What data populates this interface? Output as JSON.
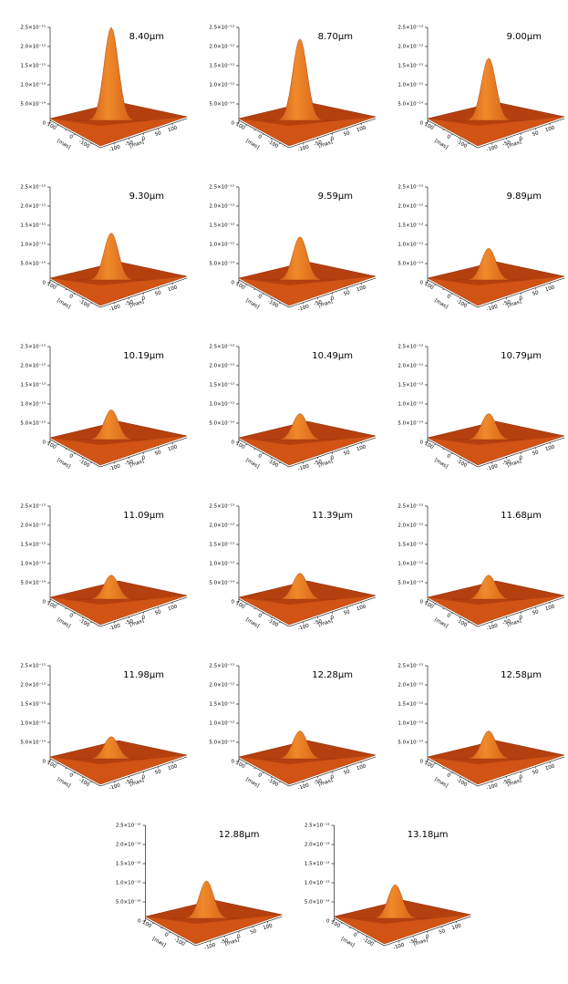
{
  "chart_data": [
    {
      "type": "surface",
      "title": "8.40μm",
      "peak": 2.5e-13,
      "color": "#e8651c",
      "zlim": [
        0,
        2.5e-13
      ],
      "zticks": [
        0,
        {
          "value": 5e-14,
          "label": "5.0×10⁻¹⁴"
        },
        {
          "value": 1e-13,
          "label": "1.0×10⁻¹³"
        },
        {
          "value": 1.5e-13,
          "label": "1.5×10⁻¹³"
        },
        {
          "value": 2e-13,
          "label": "2.0×10⁻¹³"
        },
        {
          "value": 2.5e-13,
          "label": "2.5×10⁻¹³"
        }
      ],
      "xlabel": "[mas]",
      "ylabel": "[mas]",
      "xlim": [
        -150,
        150
      ],
      "ylim": [
        -150,
        150
      ],
      "xticks": [
        -100,
        -50,
        0,
        50,
        100
      ],
      "yticks": [
        -100,
        -50,
        0,
        50,
        100
      ]
    },
    {
      "type": "surface",
      "title": "8.70μm",
      "peak": 2.2e-13,
      "color": "#e8651c",
      "zlim": [
        0,
        2.5e-13
      ],
      "zticks": [
        0,
        {
          "value": 5e-14,
          "label": "5.0×10⁻¹⁴"
        },
        {
          "value": 1e-13,
          "label": "1.0×10⁻¹³"
        },
        {
          "value": 1.5e-13,
          "label": "1.5×10⁻¹³"
        },
        {
          "value": 2e-13,
          "label": "2.0×10⁻¹³"
        },
        {
          "value": 2.5e-13,
          "label": "2.5×10⁻¹³"
        }
      ],
      "xlabel": "[mas]",
      "ylabel": "[mas]",
      "xlim": [
        -150,
        150
      ],
      "ylim": [
        -150,
        150
      ],
      "xticks": [
        -100,
        -50,
        0,
        50,
        100
      ],
      "yticks": [
        -100,
        -50,
        0,
        50,
        100
      ]
    },
    {
      "type": "surface",
      "title": "9.00μm",
      "peak": 1.7e-13,
      "color": "#e8651c",
      "zlim": [
        0,
        2.5e-13
      ],
      "zticks": [
        0,
        {
          "value": 5e-14,
          "label": "5.0×10⁻¹⁴"
        },
        {
          "value": 1e-13,
          "label": "1.0×10⁻¹³"
        },
        {
          "value": 1.5e-13,
          "label": "1.5×10⁻¹³"
        },
        {
          "value": 2e-13,
          "label": "2.0×10⁻¹³"
        },
        {
          "value": 2.5e-13,
          "label": "2.5×10⁻¹³"
        }
      ],
      "xlabel": "[mas]",
      "ylabel": "[mas]",
      "xlim": [
        -150,
        150
      ],
      "ylim": [
        -150,
        150
      ],
      "xticks": [
        -100,
        -50,
        0,
        50,
        100
      ],
      "yticks": [
        -100,
        -50,
        0,
        50,
        100
      ]
    },
    {
      "type": "surface",
      "title": "9.30μm",
      "peak": 1.3e-13,
      "color": "#e8651c",
      "zlim": [
        0,
        2.5e-13
      ],
      "zticks": [
        0,
        {
          "value": 5e-14,
          "label": "5.0×10⁻¹⁴"
        },
        {
          "value": 1e-13,
          "label": "1.0×10⁻¹³"
        },
        {
          "value": 1.5e-13,
          "label": "1.5×10⁻¹³"
        },
        {
          "value": 2e-13,
          "label": "2.0×10⁻¹³"
        },
        {
          "value": 2.5e-13,
          "label": "2.5×10⁻¹³"
        }
      ],
      "xlabel": "[mas]",
      "ylabel": "[mas]",
      "xlim": [
        -150,
        150
      ],
      "ylim": [
        -150,
        150
      ],
      "xticks": [
        -100,
        -50,
        0,
        50,
        100
      ],
      "yticks": [
        -100,
        -50,
        0,
        50,
        100
      ]
    },
    {
      "type": "surface",
      "title": "9.59μm",
      "peak": 1.2e-13,
      "color": "#e8651c",
      "zlim": [
        0,
        2.5e-13
      ],
      "zticks": [
        0,
        {
          "value": 5e-14,
          "label": "5.0×10⁻¹⁴"
        },
        {
          "value": 1e-13,
          "label": "1.0×10⁻¹³"
        },
        {
          "value": 1.5e-13,
          "label": "1.5×10⁻¹³"
        },
        {
          "value": 2e-13,
          "label": "2.0×10⁻¹³"
        },
        {
          "value": 2.5e-13,
          "label": "2.5×10⁻¹³"
        }
      ],
      "xlabel": "[mas]",
      "ylabel": "[mas]",
      "xlim": [
        -150,
        150
      ],
      "ylim": [
        -150,
        150
      ],
      "xticks": [
        -100,
        -50,
        0,
        50,
        100
      ],
      "yticks": [
        -100,
        -50,
        0,
        50,
        100
      ]
    },
    {
      "type": "surface",
      "title": "9.89μm",
      "peak": 9e-14,
      "color": "#e8651c",
      "zlim": [
        0,
        2.5e-13
      ],
      "zticks": [
        0,
        {
          "value": 5e-14,
          "label": "5.0×10⁻¹⁴"
        },
        {
          "value": 1e-13,
          "label": "1.0×10⁻¹³"
        },
        {
          "value": 1.5e-13,
          "label": "1.5×10⁻¹³"
        },
        {
          "value": 2e-13,
          "label": "2.0×10⁻¹³"
        },
        {
          "value": 2.5e-13,
          "label": "2.5×10⁻¹³"
        }
      ],
      "xlabel": "[mas]",
      "ylabel": "[mas]",
      "xlim": [
        -150,
        150
      ],
      "ylim": [
        -150,
        150
      ],
      "xticks": [
        -100,
        -50,
        0,
        50,
        100
      ],
      "yticks": [
        -100,
        -50,
        0,
        50,
        100
      ]
    },
    {
      "type": "surface",
      "title": "10.19μm",
      "peak": 8.5e-14,
      "color": "#e8651c",
      "zlim": [
        0,
        2.5e-13
      ],
      "zticks": [
        0,
        {
          "value": 5e-14,
          "label": "5.0×10⁻¹⁴"
        },
        {
          "value": 1e-13,
          "label": "1.0×10⁻¹³"
        },
        {
          "value": 1.5e-13,
          "label": "1.5×10⁻¹³"
        },
        {
          "value": 2e-13,
          "label": "2.0×10⁻¹³"
        },
        {
          "value": 2.5e-13,
          "label": "2.5×10⁻¹³"
        }
      ],
      "xlabel": "[mas]",
      "ylabel": "[mas]",
      "xlim": [
        -150,
        150
      ],
      "ylim": [
        -150,
        150
      ],
      "xticks": [
        -100,
        -50,
        0,
        50,
        100
      ],
      "yticks": [
        -100,
        -50,
        0,
        50,
        100
      ]
    },
    {
      "type": "surface",
      "title": "10.49μm",
      "peak": 7.5e-14,
      "color": "#e8651c",
      "zlim": [
        0,
        2.5e-13
      ],
      "zticks": [
        0,
        {
          "value": 5e-14,
          "label": "5.0×10⁻¹⁴"
        },
        {
          "value": 1e-13,
          "label": "1.0×10⁻¹³"
        },
        {
          "value": 1.5e-13,
          "label": "1.5×10⁻¹³"
        },
        {
          "value": 2e-13,
          "label": "2.0×10⁻¹³"
        },
        {
          "value": 2.5e-13,
          "label": "2.5×10⁻¹³"
        }
      ],
      "xlabel": "[mas]",
      "ylabel": "[mas]",
      "xlim": [
        -150,
        150
      ],
      "ylim": [
        -150,
        150
      ],
      "xticks": [
        -100,
        -50,
        0,
        50,
        100
      ],
      "yticks": [
        -100,
        -50,
        0,
        50,
        100
      ]
    },
    {
      "type": "surface",
      "title": "10.79μm",
      "peak": 7.5e-14,
      "color": "#e8651c",
      "zlim": [
        0,
        2.5e-13
      ],
      "zticks": [
        0,
        {
          "value": 5e-14,
          "label": "5.0×10⁻¹⁴"
        },
        {
          "value": 1e-13,
          "label": "1.0×10⁻¹³"
        },
        {
          "value": 1.5e-13,
          "label": "1.5×10⁻¹³"
        },
        {
          "value": 2e-13,
          "label": "2.0×10⁻¹³"
        },
        {
          "value": 2.5e-13,
          "label": "2.5×10⁻¹³"
        }
      ],
      "xlabel": "[mas]",
      "ylabel": "[mas]",
      "xlim": [
        -150,
        150
      ],
      "ylim": [
        -150,
        150
      ],
      "xticks": [
        -100,
        -50,
        0,
        50,
        100
      ],
      "yticks": [
        -100,
        -50,
        0,
        50,
        100
      ]
    },
    {
      "type": "surface",
      "title": "11.09μm",
      "peak": 7e-14,
      "color": "#e8651c",
      "zlim": [
        0,
        2.5e-13
      ],
      "zticks": [
        0,
        {
          "value": 5e-14,
          "label": "5.0×10⁻¹⁴"
        },
        {
          "value": 1e-13,
          "label": "1.0×10⁻¹³"
        },
        {
          "value": 1.5e-13,
          "label": "1.5×10⁻¹³"
        },
        {
          "value": 2e-13,
          "label": "2.0×10⁻¹³"
        },
        {
          "value": 2.5e-13,
          "label": "2.5×10⁻¹³"
        }
      ],
      "xlabel": "[mas]",
      "ylabel": "[mas]",
      "xlim": [
        -150,
        150
      ],
      "ylim": [
        -150,
        150
      ],
      "xticks": [
        -100,
        -50,
        0,
        50,
        100
      ],
      "yticks": [
        -100,
        -50,
        0,
        50,
        100
      ]
    },
    {
      "type": "surface",
      "title": "11.39μm",
      "peak": 7.5e-14,
      "color": "#e8651c",
      "zlim": [
        0,
        2.5e-13
      ],
      "zticks": [
        0,
        {
          "value": 5e-14,
          "label": "5.0×10⁻¹⁴"
        },
        {
          "value": 1e-13,
          "label": "1.0×10⁻¹³"
        },
        {
          "value": 1.5e-13,
          "label": "1.5×10⁻¹³"
        },
        {
          "value": 2e-13,
          "label": "2.0×10⁻¹³"
        },
        {
          "value": 2.5e-13,
          "label": "2.5×10⁻¹³"
        }
      ],
      "xlabel": "[mas]",
      "ylabel": "[mas]",
      "xlim": [
        -150,
        150
      ],
      "ylim": [
        -150,
        150
      ],
      "xticks": [
        -100,
        -50,
        0,
        50,
        100
      ],
      "yticks": [
        -100,
        -50,
        0,
        50,
        100
      ]
    },
    {
      "type": "surface",
      "title": "11.68μm",
      "peak": 7e-14,
      "color": "#e8651c",
      "zlim": [
        0,
        2.5e-13
      ],
      "zticks": [
        0,
        {
          "value": 5e-14,
          "label": "5.0×10⁻¹⁴"
        },
        {
          "value": 1e-13,
          "label": "1.0×10⁻¹³"
        },
        {
          "value": 1.5e-13,
          "label": "1.5×10⁻¹³"
        },
        {
          "value": 2e-13,
          "label": "2.0×10⁻¹³"
        },
        {
          "value": 2.5e-13,
          "label": "2.5×10⁻¹³"
        }
      ],
      "xlabel": "[mas]",
      "ylabel": "[mas]",
      "xlim": [
        -150,
        150
      ],
      "ylim": [
        -150,
        150
      ],
      "xticks": [
        -100,
        -50,
        0,
        50,
        100
      ],
      "yticks": [
        -100,
        -50,
        0,
        50,
        100
      ]
    },
    {
      "type": "surface",
      "title": "11.98μm",
      "peak": 6.5e-14,
      "color": "#e8651c",
      "zlim": [
        0,
        2.5e-13
      ],
      "zticks": [
        0,
        {
          "value": 5e-14,
          "label": "5.0×10⁻¹⁴"
        },
        {
          "value": 1e-13,
          "label": "1.0×10⁻¹³"
        },
        {
          "value": 1.5e-13,
          "label": "1.5×10⁻¹³"
        },
        {
          "value": 2e-13,
          "label": "2.0×10⁻¹³"
        },
        {
          "value": 2.5e-13,
          "label": "2.5×10⁻¹³"
        }
      ],
      "xlabel": "[mas]",
      "ylabel": "[mas]",
      "xlim": [
        -150,
        150
      ],
      "ylim": [
        -150,
        150
      ],
      "xticks": [
        -100,
        -50,
        0,
        50,
        100
      ],
      "yticks": [
        -100,
        -50,
        0,
        50,
        100
      ]
    },
    {
      "type": "surface",
      "title": "12.28μm",
      "peak": 8e-14,
      "color": "#e8651c",
      "zlim": [
        0,
        2.5e-13
      ],
      "zticks": [
        0,
        {
          "value": 5e-14,
          "label": "5.0×10⁻¹⁴"
        },
        {
          "value": 1e-13,
          "label": "1.0×10⁻¹³"
        },
        {
          "value": 1.5e-13,
          "label": "1.5×10⁻¹³"
        },
        {
          "value": 2e-13,
          "label": "2.0×10⁻¹³"
        },
        {
          "value": 2.5e-13,
          "label": "2.5×10⁻¹³"
        }
      ],
      "xlabel": "[mas]",
      "ylabel": "[mas]",
      "xlim": [
        -150,
        150
      ],
      "ylim": [
        -150,
        150
      ],
      "xticks": [
        -100,
        -50,
        0,
        50,
        100
      ],
      "yticks": [
        -100,
        -50,
        0,
        50,
        100
      ]
    },
    {
      "type": "surface",
      "title": "12.58μm",
      "peak": 8e-14,
      "color": "#e8651c",
      "zlim": [
        0,
        2.5e-13
      ],
      "zticks": [
        0,
        {
          "value": 5e-14,
          "label": "5.0×10⁻¹⁴"
        },
        {
          "value": 1e-13,
          "label": "1.0×10⁻¹³"
        },
        {
          "value": 1.5e-13,
          "label": "1.5×10⁻¹³"
        },
        {
          "value": 2e-13,
          "label": "2.0×10⁻¹³"
        },
        {
          "value": 2.5e-13,
          "label": "2.5×10⁻¹³"
        }
      ],
      "xlabel": "[mas]",
      "ylabel": "[mas]",
      "xlim": [
        -150,
        150
      ],
      "ylim": [
        -150,
        150
      ],
      "xticks": [
        -100,
        -50,
        0,
        50,
        100
      ],
      "yticks": [
        -100,
        -50,
        0,
        50,
        100
      ]
    },
    {
      "type": "surface",
      "title": "12.88μm",
      "peak": 1.05e-13,
      "color": "#e8651c",
      "zlim": [
        0,
        2.5e-13
      ],
      "zticks": [
        0,
        {
          "value": 5e-14,
          "label": "5.0×10⁻¹⁴"
        },
        {
          "value": 1e-13,
          "label": "1.0×10⁻¹³"
        },
        {
          "value": 1.5e-13,
          "label": "1.5×10⁻¹³"
        },
        {
          "value": 2e-13,
          "label": "2.0×10⁻¹³"
        },
        {
          "value": 2.5e-13,
          "label": "2.5×10⁻¹³"
        }
      ],
      "xlabel": "[mas]",
      "ylabel": "[mas]",
      "xlim": [
        -150,
        150
      ],
      "ylim": [
        -150,
        150
      ],
      "xticks": [
        -100,
        -50,
        0,
        50,
        100
      ],
      "yticks": [
        -100,
        -50,
        0,
        50,
        100
      ]
    },
    {
      "type": "surface",
      "title": "13.18μm",
      "peak": 9.5e-14,
      "color": "#e8651c",
      "zlim": [
        0,
        2.5e-13
      ],
      "zticks": [
        0,
        {
          "value": 5e-14,
          "label": "5.0×10⁻¹⁴"
        },
        {
          "value": 1e-13,
          "label": "1.0×10⁻¹³"
        },
        {
          "value": 1.5e-13,
          "label": "1.5×10⁻¹³"
        },
        {
          "value": 2e-13,
          "label": "2.0×10⁻¹³"
        },
        {
          "value": 2.5e-13,
          "label": "2.5×10⁻¹³"
        }
      ],
      "xlabel": "[mas]",
      "ylabel": "[mas]",
      "xlim": [
        -150,
        150
      ],
      "ylim": [
        -150,
        150
      ],
      "xticks": [
        -100,
        -50,
        0,
        50,
        100
      ],
      "yticks": [
        -100,
        -50,
        0,
        50,
        100
      ]
    }
  ]
}
